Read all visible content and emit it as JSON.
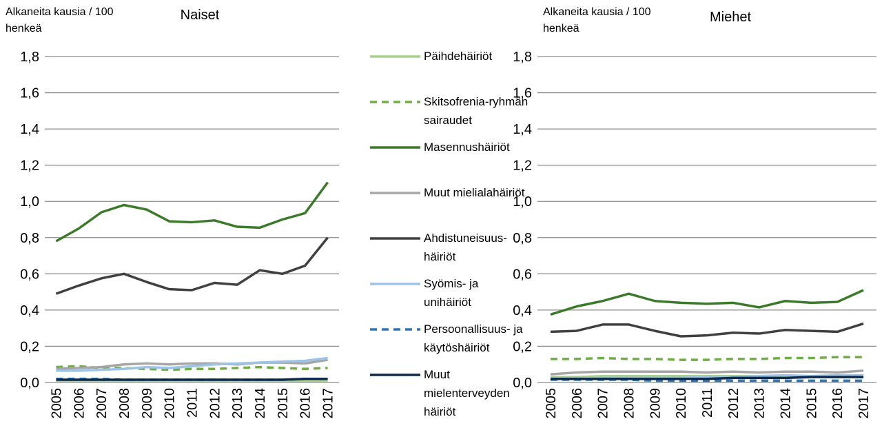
{
  "chart_data": [
    {
      "type": "line",
      "title": "Naiset",
      "ylabel": "Alkaneita kausia / 100 henkeä",
      "categories": [
        "2005",
        "2006",
        "2007",
        "2008",
        "2009",
        "2010",
        "2011",
        "2012",
        "2013",
        "2014",
        "2015",
        "2016",
        "2017"
      ],
      "ylim": [
        0,
        1.8
      ],
      "yticks": [
        {
          "value": 0,
          "label": "0,0"
        },
        {
          "value": 0.2,
          "label": "0,2"
        },
        {
          "value": 0.4,
          "label": "0,4"
        },
        {
          "value": 0.6,
          "label": "0,6"
        },
        {
          "value": 0.8,
          "label": "0,8"
        },
        {
          "value": 1.0,
          "label": "1,0"
        },
        {
          "value": 1.2,
          "label": "1,2"
        },
        {
          "value": 1.4,
          "label": "1,4"
        },
        {
          "value": 1.6,
          "label": "1,6"
        },
        {
          "value": 1.8,
          "label": "1,8"
        }
      ],
      "grid": true,
      "series": [
        {
          "name": "Päihdehäiriöt",
          "color": "#a9d18e",
          "dashed": false,
          "values": [
            0.01,
            0.01,
            0.01,
            0.01,
            0.01,
            0.01,
            0.01,
            0.01,
            0.01,
            0.01,
            0.01,
            0.01,
            0.01
          ]
        },
        {
          "name": "Skitsofrenia-ryhmän sairaudet",
          "color": "#70ad47",
          "dashed": true,
          "values": [
            0.085,
            0.09,
            0.08,
            0.08,
            0.075,
            0.07,
            0.075,
            0.075,
            0.08,
            0.085,
            0.08,
            0.075,
            0.08
          ]
        },
        {
          "name": "Masennushäiriöt",
          "color": "#3a7a2a",
          "dashed": false,
          "values": [
            0.78,
            0.85,
            0.94,
            0.98,
            0.955,
            0.89,
            0.885,
            0.895,
            0.86,
            0.855,
            0.9,
            0.935,
            1.105
          ]
        },
        {
          "name": "Muut mielialahäiriöt",
          "color": "#a6a6a6",
          "dashed": false,
          "values": [
            0.075,
            0.08,
            0.085,
            0.1,
            0.105,
            0.1,
            0.105,
            0.105,
            0.1,
            0.11,
            0.11,
            0.105,
            0.125
          ]
        },
        {
          "name": "Ahdistuneisuus-häiriöt",
          "color": "#404040",
          "dashed": false,
          "values": [
            0.49,
            0.535,
            0.575,
            0.6,
            0.555,
            0.515,
            0.51,
            0.55,
            0.54,
            0.62,
            0.6,
            0.645,
            0.8
          ]
        },
        {
          "name": "Syömis- ja unihäiriöt",
          "color": "#9dc3e6",
          "dashed": false,
          "values": [
            0.065,
            0.065,
            0.07,
            0.075,
            0.085,
            0.08,
            0.09,
            0.1,
            0.105,
            0.11,
            0.115,
            0.12,
            0.135
          ]
        },
        {
          "name": "Persoonallisuus- ja käytöshäiriöt",
          "color": "#2e75b6",
          "dashed": true,
          "values": [
            0.02,
            0.02,
            0.02,
            0.015,
            0.015,
            0.015,
            0.015,
            0.015,
            0.015,
            0.015,
            0.015,
            0.02,
            0.02
          ]
        },
        {
          "name": "Muut mielenterveyden häiriöt",
          "color": "#0e2a4a",
          "dashed": false,
          "values": [
            0.015,
            0.015,
            0.015,
            0.015,
            0.015,
            0.015,
            0.015,
            0.015,
            0.015,
            0.015,
            0.015,
            0.02,
            0.02
          ]
        }
      ]
    },
    {
      "type": "line",
      "title": "Miehet",
      "ylabel": "Alkaneita kausia / 100 henkeä",
      "categories": [
        "2005",
        "2006",
        "2007",
        "2008",
        "2009",
        "2010",
        "2011",
        "2012",
        "2013",
        "2014",
        "2015",
        "2016",
        "2017"
      ],
      "ylim": [
        0,
        1.8
      ],
      "yticks": [
        {
          "value": 0,
          "label": "0,0"
        },
        {
          "value": 0.2,
          "label": "0,2"
        },
        {
          "value": 0.4,
          "label": "0,4"
        },
        {
          "value": 0.6,
          "label": "0,6"
        },
        {
          "value": 0.8,
          "label": "0,8"
        },
        {
          "value": 1.0,
          "label": "1,0"
        },
        {
          "value": 1.2,
          "label": "1,2"
        },
        {
          "value": 1.4,
          "label": "1,4"
        },
        {
          "value": 1.6,
          "label": "1,6"
        },
        {
          "value": 1.8,
          "label": "1,8"
        }
      ],
      "grid": true,
      "series": [
        {
          "color": "#a9d18e",
          "dashed": false,
          "values": [
            0.03,
            0.03,
            0.035,
            0.035,
            0.035,
            0.035,
            0.035,
            0.035,
            0.035,
            0.035,
            0.035,
            0.03,
            0.03
          ]
        },
        {
          "color": "#70ad47",
          "dashed": true,
          "values": [
            0.13,
            0.13,
            0.135,
            0.13,
            0.13,
            0.125,
            0.125,
            0.13,
            0.13,
            0.135,
            0.135,
            0.14,
            0.14
          ]
        },
        {
          "color": "#3a7a2a",
          "dashed": false,
          "values": [
            0.375,
            0.42,
            0.45,
            0.49,
            0.45,
            0.44,
            0.435,
            0.44,
            0.415,
            0.45,
            0.44,
            0.445,
            0.51
          ]
        },
        {
          "color": "#a6a6a6",
          "dashed": false,
          "values": [
            0.045,
            0.055,
            0.06,
            0.06,
            0.06,
            0.06,
            0.055,
            0.06,
            0.055,
            0.06,
            0.06,
            0.055,
            0.065
          ]
        },
        {
          "color": "#404040",
          "dashed": false,
          "values": [
            0.28,
            0.285,
            0.32,
            0.32,
            0.285,
            0.255,
            0.26,
            0.275,
            0.27,
            0.29,
            0.285,
            0.28,
            0.325
          ]
        },
        {
          "color": "#9dc3e6",
          "dashed": false,
          "values": [
            0.02,
            0.02,
            0.025,
            0.025,
            0.025,
            0.025,
            0.03,
            0.03,
            0.035,
            0.04,
            0.035,
            0.04,
            0.04
          ]
        },
        {
          "color": "#2e75b6",
          "dashed": true,
          "values": [
            0.015,
            0.015,
            0.015,
            0.015,
            0.01,
            0.01,
            0.01,
            0.01,
            0.01,
            0.01,
            0.01,
            0.01,
            0.01
          ]
        },
        {
          "color": "#0e2a4a",
          "dashed": false,
          "values": [
            0.02,
            0.02,
            0.02,
            0.02,
            0.02,
            0.02,
            0.02,
            0.025,
            0.025,
            0.025,
            0.03,
            0.03,
            0.03
          ]
        }
      ]
    }
  ]
}
